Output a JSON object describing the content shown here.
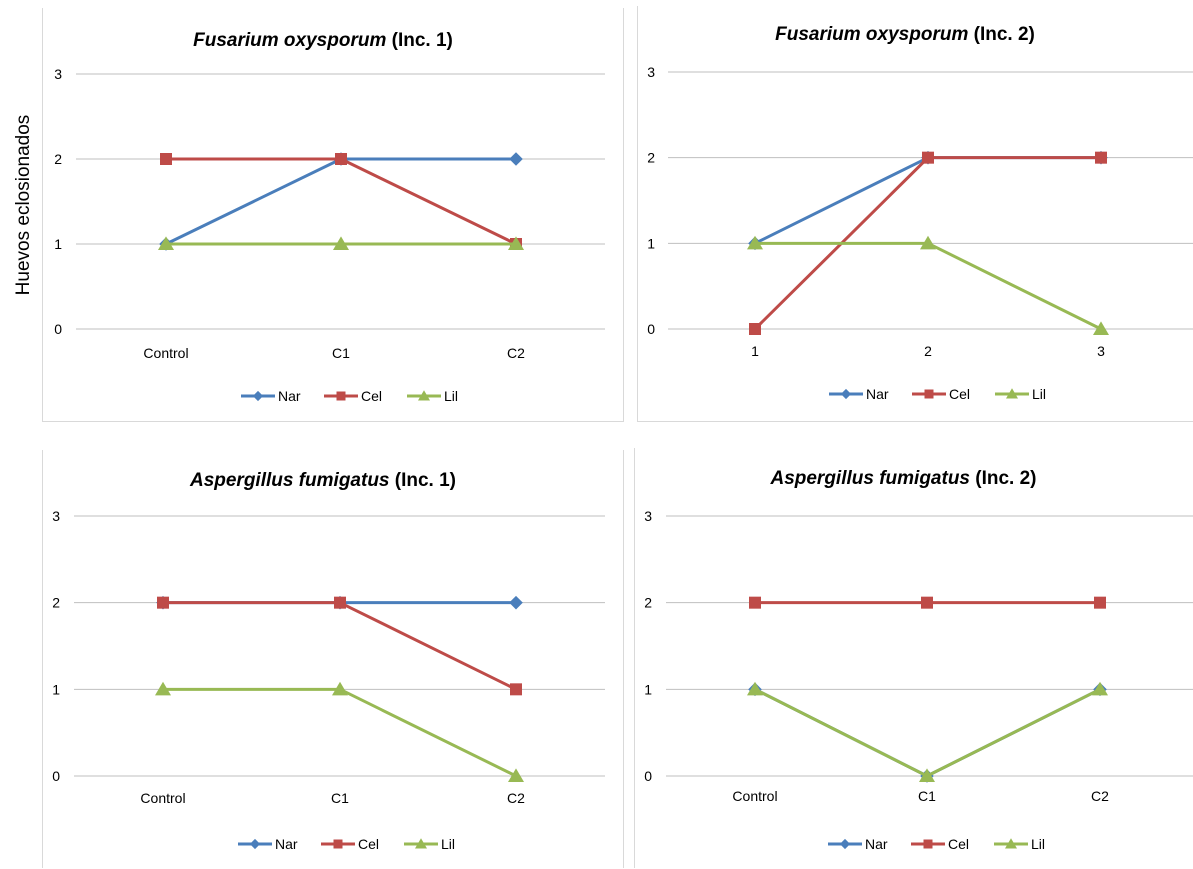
{
  "ylabel": "Huevos eclosionados",
  "colors": {
    "Nar": "#4a7ebb",
    "Cel": "#be4b48",
    "Lil": "#98b954",
    "grid": "#bfbfbf",
    "frame": "#d9d9d9"
  },
  "chart_data": [
    {
      "type": "line",
      "title_italic": "Fusarium oxysporum",
      "title_rest": " (Inc. 1)",
      "categories": [
        "Control",
        "C1",
        "C2"
      ],
      "ylim": [
        0,
        3
      ],
      "yticks": [
        "0",
        "1",
        "2",
        "3"
      ],
      "grid": true,
      "legend_position": "bottom",
      "series": [
        {
          "name": "Nar",
          "values": [
            1,
            2,
            2
          ]
        },
        {
          "name": "Cel",
          "values": [
            2,
            2,
            1
          ]
        },
        {
          "name": "Lil",
          "values": [
            1,
            1,
            1
          ]
        }
      ]
    },
    {
      "type": "line",
      "title_italic": "Fusarium oxysporum",
      "title_rest": " (Inc. 2)",
      "categories": [
        "1",
        "2",
        "3"
      ],
      "ylim": [
        0,
        3
      ],
      "yticks": [
        "0",
        "1",
        "2",
        "3"
      ],
      "grid": true,
      "legend_position": "bottom",
      "series": [
        {
          "name": "Nar",
          "values": [
            1,
            2,
            2
          ]
        },
        {
          "name": "Cel",
          "values": [
            0,
            2,
            2
          ]
        },
        {
          "name": "Lil",
          "values": [
            1,
            1,
            0
          ]
        }
      ]
    },
    {
      "type": "line",
      "title_italic": "Aspergillus fumigatus",
      "title_rest": " (Inc. 1)",
      "categories": [
        "Control",
        "C1",
        "C2"
      ],
      "ylim": [
        0,
        3
      ],
      "yticks": [
        "0",
        "1",
        "2",
        "3"
      ],
      "grid": true,
      "legend_position": "bottom",
      "series": [
        {
          "name": "Nar",
          "values": [
            2,
            2,
            2
          ]
        },
        {
          "name": "Cel",
          "values": [
            2,
            2,
            1
          ]
        },
        {
          "name": "Lil",
          "values": [
            1,
            1,
            0
          ]
        }
      ]
    },
    {
      "type": "line",
      "title_italic": "Aspergillus fumigatus",
      "title_rest": " (Inc. 2)",
      "categories": [
        "Control",
        "C1",
        "C2"
      ],
      "ylim": [
        0,
        3
      ],
      "yticks": [
        "0",
        "1",
        "2",
        "3"
      ],
      "grid": true,
      "legend_position": "bottom",
      "series": [
        {
          "name": "Nar",
          "values": [
            1,
            0,
            1
          ]
        },
        {
          "name": "Cel",
          "values": [
            2,
            2,
            2
          ]
        },
        {
          "name": "Lil",
          "values": [
            1,
            0,
            1
          ]
        }
      ]
    }
  ]
}
